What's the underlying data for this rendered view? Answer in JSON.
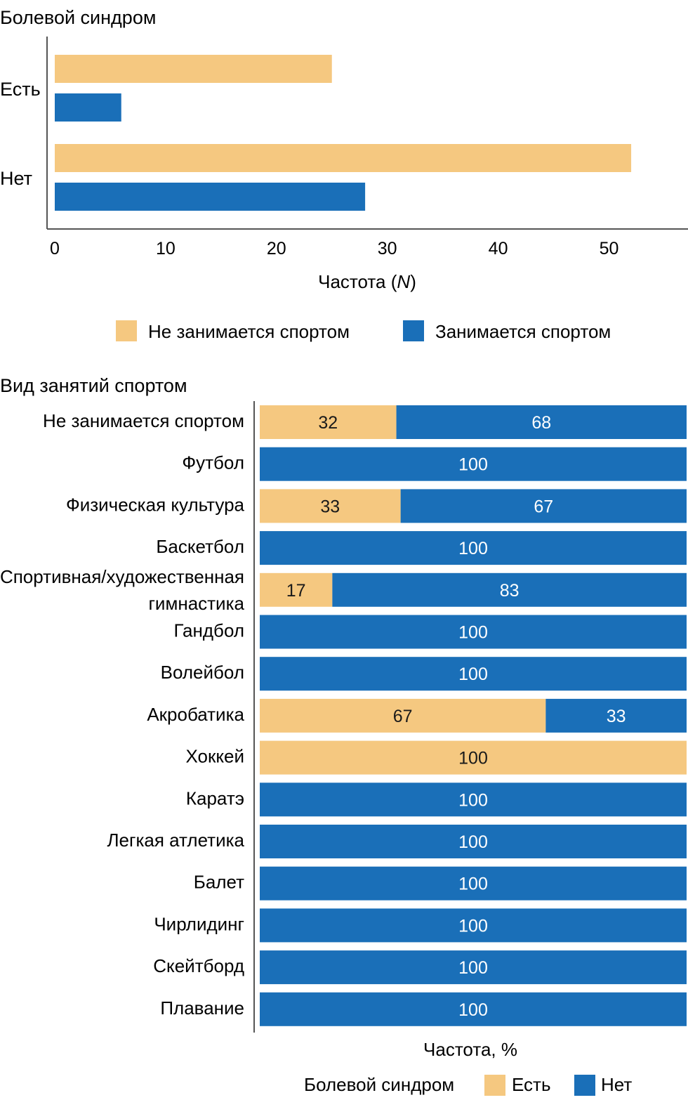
{
  "colors": {
    "yes": "#f5c880",
    "no": "#1a6fb8",
    "axis": "#555555",
    "text": "#1a1a1a"
  },
  "chart_data": [
    {
      "type": "bar",
      "orientation": "horizontal",
      "title": "Болевой синдром",
      "categories": [
        "Есть",
        "Нет"
      ],
      "series": [
        {
          "name": "Не занимается спортом",
          "color": "#f5c880",
          "values": [
            25,
            52
          ]
        },
        {
          "name": "Занимается спортом",
          "color": "#1a6fb8",
          "values": [
            6,
            28
          ]
        }
      ],
      "xlabel_main": "Частота (",
      "xlabel_italic": "N",
      "xlabel_end": ")",
      "xlim": [
        0,
        57
      ],
      "xticks": [
        0,
        10,
        20,
        30,
        40,
        50
      ],
      "legend_position": "bottom"
    },
    {
      "type": "bar",
      "orientation": "horizontal",
      "stacked": true,
      "title": "Вид занятий спортом",
      "categories": [
        "Не занимается спортом",
        "Футбол",
        "Физическая культура",
        "Баскетбол",
        "Спортивная/художественная|гимнастика",
        "Гандбол",
        "Волейбол",
        "Акробатика",
        "Хоккей",
        "Каратэ",
        "Легкая атлетика",
        "Балет",
        "Чирлидинг",
        "Скейтборд",
        "Плавание"
      ],
      "series": [
        {
          "name": "Есть",
          "color": "#f5c880",
          "values": [
            32,
            0,
            33,
            0,
            17,
            0,
            0,
            67,
            100,
            0,
            0,
            0,
            0,
            0,
            0
          ]
        },
        {
          "name": "Нет",
          "color": "#1a6fb8",
          "values": [
            68,
            100,
            67,
            100,
            83,
            100,
            100,
            33,
            0,
            100,
            100,
            100,
            100,
            100,
            100
          ]
        }
      ],
      "xlabel": "Частота, %",
      "xlim": [
        0,
        100
      ],
      "legend_title": "Болевой синдром",
      "legend_position": "bottom"
    }
  ]
}
